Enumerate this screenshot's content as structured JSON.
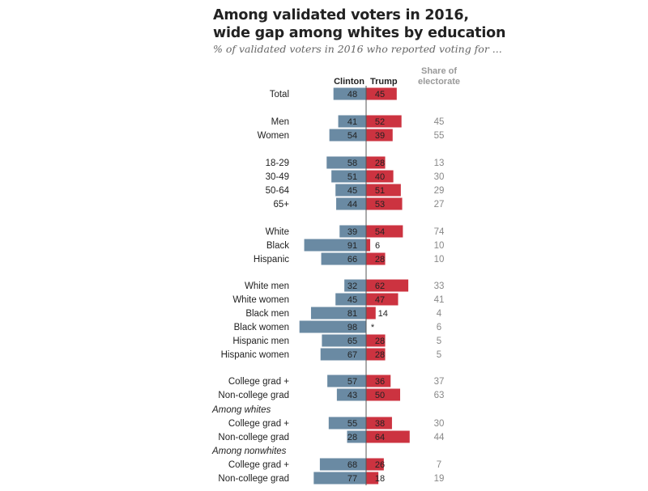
{
  "title_line1": "Among validated voters in 2016,",
  "title_line2": "wide gap among whites by education",
  "subtitle": "% of validated voters in 2016 who reported voting for ...",
  "colors": {
    "clinton": "#6a8aa3",
    "trump": "#cc3340",
    "axis": "#555555"
  },
  "chart_data": {
    "type": "bar",
    "orientation": "diverging-horizontal",
    "title": "Among validated voters in 2016, wide gap among whites by education",
    "subtitle": "% of validated voters in 2016 who reported voting for ...",
    "column_headers": {
      "clinton": "Clinton",
      "trump": "Trump",
      "share_line1": "Share of",
      "share_line2": "electorate"
    },
    "series": [
      {
        "name": "Clinton"
      },
      {
        "name": "Trump"
      }
    ],
    "rows": [
      {
        "label": "Total",
        "clinton": 48,
        "trump": 45,
        "share": ""
      },
      {
        "label": "Men",
        "clinton": 41,
        "trump": 52,
        "share": "45"
      },
      {
        "label": "Women",
        "clinton": 54,
        "trump": 39,
        "share": "55"
      },
      {
        "label": "18-29",
        "clinton": 58,
        "trump": 28,
        "share": "13"
      },
      {
        "label": "30-49",
        "clinton": 51,
        "trump": 40,
        "share": "30"
      },
      {
        "label": "50-64",
        "clinton": 45,
        "trump": 51,
        "share": "29"
      },
      {
        "label": "65+",
        "clinton": 44,
        "trump": 53,
        "share": "27"
      },
      {
        "label": "White",
        "clinton": 39,
        "trump": 54,
        "share": "74"
      },
      {
        "label": "Black",
        "clinton": 91,
        "trump": 6,
        "share": "10"
      },
      {
        "label": "Hispanic",
        "clinton": 66,
        "trump": 28,
        "share": "10"
      },
      {
        "label": "White men",
        "clinton": 32,
        "trump": 62,
        "share": "33"
      },
      {
        "label": "White women",
        "clinton": 45,
        "trump": 47,
        "share": "41"
      },
      {
        "label": "Black men",
        "clinton": 81,
        "trump": 14,
        "share": "4"
      },
      {
        "label": "Black women",
        "clinton": 98,
        "trump": null,
        "trump_label": "*",
        "share": "6"
      },
      {
        "label": "Hispanic men",
        "clinton": 65,
        "trump": 28,
        "share": "5"
      },
      {
        "label": "Hispanic women",
        "clinton": 67,
        "trump": 28,
        "share": "5"
      },
      {
        "label": "College grad +",
        "clinton": 57,
        "trump": 36,
        "share": "37"
      },
      {
        "label": "Non-college grad",
        "clinton": 43,
        "trump": 50,
        "share": "63"
      },
      {
        "group_label": "Among whites",
        "label": "College grad +",
        "clinton": 55,
        "trump": 38,
        "share": "30"
      },
      {
        "label": "Non-college grad",
        "clinton": 28,
        "trump": 64,
        "share": "44"
      },
      {
        "group_label": "Among nonwhites",
        "label": "College grad +",
        "clinton": 68,
        "trump": 26,
        "share": "7"
      },
      {
        "label": "Non-college grad",
        "clinton": 77,
        "trump": 18,
        "share": "19"
      }
    ],
    "xlim": [
      0,
      100
    ],
    "grid": false,
    "legend": "column headers at top"
  }
}
